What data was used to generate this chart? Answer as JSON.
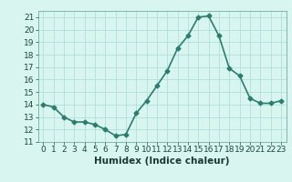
{
  "x": [
    0,
    1,
    2,
    3,
    4,
    5,
    6,
    7,
    8,
    9,
    10,
    11,
    12,
    13,
    14,
    15,
    16,
    17,
    18,
    19,
    20,
    21,
    22,
    23
  ],
  "y": [
    14.0,
    13.8,
    13.0,
    12.6,
    12.6,
    12.4,
    12.0,
    11.5,
    11.6,
    13.3,
    14.3,
    15.5,
    16.7,
    18.5,
    19.5,
    21.0,
    21.1,
    19.5,
    16.9,
    16.3,
    14.5,
    14.1,
    14.1,
    14.3
  ],
  "line_color": "#2d7d6e",
  "marker": "D",
  "marker_size": 2.5,
  "bg_color": "#d8f5f0",
  "grid_color": "#b0e0da",
  "xlabel": "Humidex (Indice chaleur)",
  "ylim": [
    11,
    21.5
  ],
  "xlim": [
    -0.5,
    23.5
  ],
  "yticks": [
    11,
    12,
    13,
    14,
    15,
    16,
    17,
    18,
    19,
    20,
    21
  ],
  "xticks": [
    0,
    1,
    2,
    3,
    4,
    5,
    6,
    7,
    8,
    9,
    10,
    11,
    12,
    13,
    14,
    15,
    16,
    17,
    18,
    19,
    20,
    21,
    22,
    23
  ],
  "tick_fontsize": 6.5,
  "xlabel_fontsize": 7.5,
  "linewidth": 1.2
}
